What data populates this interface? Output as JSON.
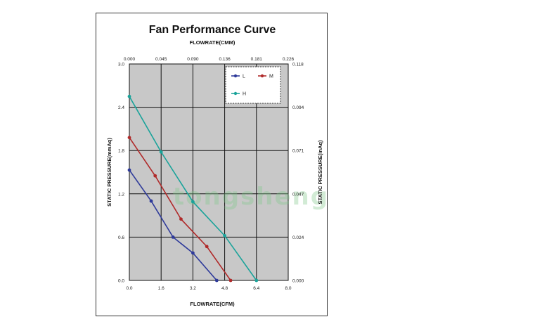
{
  "chart_data": {
    "type": "line",
    "title": "Fan Performance Curve",
    "top_xlabel": "FLOWRATE(CMM)",
    "xlabel": "FLOWRATE(CFM)",
    "ylabel_left": "STATIC PRESSURE(mmAq)",
    "ylabel_right": "STATIC PRESSURE(inAq)",
    "xlim": [
      0,
      8.0
    ],
    "ylim": [
      0,
      3.0
    ],
    "x_ticks": [
      "0.0",
      "1.6",
      "3.2",
      "4.8",
      "6.4",
      "8.0"
    ],
    "y_ticks_left": [
      "0.0",
      "0.6",
      "1.2",
      "1.8",
      "2.4",
      "3.0"
    ],
    "x_ticks_top": [
      "0.000",
      "0.045",
      "0.090",
      "0.136",
      "0.181",
      "0.226"
    ],
    "y_ticks_right": [
      "0.000",
      "0.024",
      "0.047",
      "0.071",
      "0.094",
      "0.118"
    ],
    "grid": true,
    "legend_position": "top-right",
    "plot_background": "#c8c8c8",
    "series": [
      {
        "name": "L",
        "color": "#2e3a9a",
        "x": [
          0.0,
          1.1,
          2.2,
          3.2,
          4.4
        ],
        "y": [
          1.53,
          1.1,
          0.6,
          0.38,
          0.0
        ]
      },
      {
        "name": "M",
        "color": "#b02a2a",
        "x": [
          0.0,
          1.3,
          2.6,
          3.9,
          5.1
        ],
        "y": [
          1.98,
          1.45,
          0.85,
          0.47,
          0.0
        ]
      },
      {
        "name": "H",
        "color": "#1aa39a",
        "x": [
          0.0,
          1.6,
          3.2,
          4.8,
          6.4
        ],
        "y": [
          2.55,
          1.78,
          1.09,
          0.62,
          0.0
        ]
      }
    ],
    "watermark": "tongsheng"
  }
}
